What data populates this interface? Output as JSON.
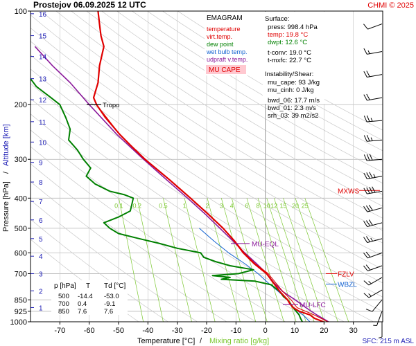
{
  "header": {
    "title": "Prostejov   06.09.2025 12 UTC",
    "credit": "CHMI © 2025"
  },
  "legend": {
    "heading": "EMAGRAM",
    "items": [
      {
        "label": "temperature",
        "color": "#e00000"
      },
      {
        "label": "virt.temp.",
        "color": "#e00000"
      },
      {
        "label": "dew point",
        "color": "#008000"
      },
      {
        "label": "wet bulb temp.",
        "color": "#1060d0"
      },
      {
        "label": "udpraft v.temp.",
        "color": "#8b1a9b"
      }
    ],
    "badge": "MU CAPE",
    "badge_color": "#ffc8d0"
  },
  "surface": {
    "heading": "Surface:",
    "lines": [
      {
        "text": "press: 998.4 hPa",
        "color": "#000000"
      },
      {
        "text": "temp: 19.8 °C",
        "color": "#e00000"
      },
      {
        "text": "dwpt: 12.6 °C",
        "color": "#008000"
      },
      {
        "text": "t-conv: 19.0 °C",
        "color": "#000000"
      },
      {
        "text": "t-mxfc: 22.7 °C",
        "color": "#000000"
      }
    ]
  },
  "instability": {
    "heading": "Instability/Shear:",
    "lines": [
      "mu_cape: 93 J/kg",
      "mu_cinh: 0 J/kg",
      "bwd_06: 17.7 m/s",
      "bwd_01: 2.3 m/s",
      "srh_03: 39 m2/s2"
    ]
  },
  "table": {
    "headers": [
      "p [hPa]",
      "T",
      "Td [°C]"
    ],
    "rows": [
      [
        "500",
        "-14.4",
        "-53.0"
      ],
      [
        "700",
        "0.4",
        "-9.1"
      ],
      [
        "850",
        "7.6",
        "7.6"
      ]
    ]
  },
  "annotations": {
    "tropo": "Tropo",
    "mu_eql": "MU-EQL",
    "mu_lfc": "MU-LFC",
    "mxws": "MXWS",
    "fzlv": "FZLV",
    "wbzl": "WBZL",
    "sfc": "SFC: 215 m ASL"
  },
  "colors": {
    "temperature": "#e00000",
    "dewpoint": "#008000",
    "wetbulb": "#1060d0",
    "parcel": "#8b1a9b",
    "altitude": "#1a1ab4",
    "mixing": "#7cc832"
  },
  "chart_data": {
    "type": "line",
    "x_axis": {
      "label": "Temperature [°C]",
      "range": [
        -80,
        40
      ],
      "ticks": [
        -70,
        -60,
        -50,
        -40,
        -30,
        -20,
        -10,
        0,
        10,
        20,
        30
      ]
    },
    "x_axis_secondary_label": "Mixing ratio [g/kg]",
    "y_axis": {
      "label": "Pressure [hPa]",
      "scale": "log",
      "range": [
        1000,
        100
      ],
      "ticks": [
        100,
        200,
        300,
        400,
        500,
        600,
        700,
        850,
        925,
        1000
      ]
    },
    "y_axis_secondary": {
      "label": "Altitude [km]",
      "ticks": [
        1,
        2,
        3,
        4,
        5,
        6,
        7,
        8,
        9,
        10,
        11,
        12,
        13,
        14,
        15,
        16
      ],
      "pressures": [
        900,
        795,
        700,
        615,
        540,
        470,
        410,
        355,
        307,
        264,
        227,
        193,
        165,
        140,
        120,
        102
      ]
    },
    "mixing_ratio_labels": [
      "0.1",
      "0.2",
      "0.5",
      "1",
      "2",
      "3",
      "4",
      "6",
      "8",
      "10",
      "12",
      "15",
      "20",
      "25"
    ],
    "mixing_ratio_label_pressure": 400,
    "series": [
      {
        "name": "temperature",
        "points": [
          [
            1000,
            19.8
          ],
          [
            975,
            16.8
          ],
          [
            950,
            15.2
          ],
          [
            925,
            11.5
          ],
          [
            900,
            9.5
          ],
          [
            875,
            8.4
          ],
          [
            850,
            7.6
          ],
          [
            800,
            5.0
          ],
          [
            750,
            2.8
          ],
          [
            700,
            0.4
          ],
          [
            650,
            -3.8
          ],
          [
            600,
            -7.5
          ],
          [
            550,
            -10.5
          ],
          [
            500,
            -14.4
          ],
          [
            450,
            -19.5
          ],
          [
            400,
            -25.5
          ],
          [
            350,
            -32.5
          ],
          [
            300,
            -41.0
          ],
          [
            270,
            -46.0
          ],
          [
            250,
            -49.5
          ],
          [
            220,
            -54.5
          ],
          [
            200,
            -57.5
          ],
          [
            190,
            -58.5
          ],
          [
            170,
            -57.0
          ],
          [
            150,
            -56.5
          ],
          [
            130,
            -55.0
          ],
          [
            120,
            -56.0
          ],
          [
            110,
            -56.5
          ],
          [
            100,
            -57.0
          ]
        ]
      },
      {
        "name": "virt.temp.",
        "points": [
          [
            1000,
            21.3
          ],
          [
            950,
            16.6
          ],
          [
            900,
            10.8
          ],
          [
            850,
            8.8
          ],
          [
            800,
            6.0
          ],
          [
            750,
            3.6
          ],
          [
            700,
            1.0
          ],
          [
            650,
            -3.5
          ],
          [
            600,
            -7.2
          ],
          [
            550,
            -10.3
          ],
          [
            500,
            -14.3
          ],
          [
            450,
            -19.4
          ],
          [
            400,
            -25.4
          ],
          [
            350,
            -32.5
          ],
          [
            300,
            -41.0
          ],
          [
            250,
            -49.5
          ],
          [
            200,
            -57.5
          ]
        ]
      },
      {
        "name": "dew point",
        "points": [
          [
            1000,
            12.6
          ],
          [
            975,
            12.0
          ],
          [
            950,
            11.5
          ],
          [
            925,
            10.5
          ],
          [
            900,
            9.5
          ],
          [
            875,
            8.6
          ],
          [
            850,
            7.6
          ],
          [
            830,
            6.2
          ],
          [
            800,
            5.0
          ],
          [
            760,
            2.0
          ],
          [
            740,
            -3.5
          ],
          [
            730,
            -15.0
          ],
          [
            720,
            -12.0
          ],
          [
            710,
            -18.0
          ],
          [
            700,
            -9.1
          ],
          [
            680,
            -4.0
          ],
          [
            660,
            -12.0
          ],
          [
            640,
            -17.0
          ],
          [
            620,
            -21.0
          ],
          [
            600,
            -22.0
          ],
          [
            580,
            -30.0
          ],
          [
            560,
            -36.0
          ],
          [
            540,
            -43.0
          ],
          [
            520,
            -50.0
          ],
          [
            500,
            -53.0
          ],
          [
            480,
            -55.0
          ],
          [
            460,
            -50.0
          ],
          [
            440,
            -46.0
          ],
          [
            420,
            -45.5
          ],
          [
            400,
            -45.0
          ],
          [
            390,
            -48.0
          ],
          [
            380,
            -53.0
          ],
          [
            360,
            -58.0
          ],
          [
            340,
            -61.0
          ],
          [
            320,
            -59.5
          ],
          [
            300,
            -62.0
          ],
          [
            280,
            -64.0
          ],
          [
            260,
            -67.0
          ],
          [
            240,
            -66.5
          ],
          [
            220,
            -68.0
          ],
          [
            200,
            -70.0
          ],
          [
            190,
            -73.0
          ],
          [
            175,
            -78.0
          ],
          [
            165,
            -80.0
          ]
        ]
      },
      {
        "name": "wet bulb temp.",
        "points": [
          [
            1000,
            15.2
          ],
          [
            950,
            12.8
          ],
          [
            900,
            9.5
          ],
          [
            850,
            7.6
          ],
          [
            800,
            4.5
          ],
          [
            750,
            1.0
          ],
          [
            700,
            -2.5
          ],
          [
            650,
            -7.0
          ],
          [
            600,
            -12.5
          ],
          [
            550,
            -17.5
          ],
          [
            500,
            -22.5
          ]
        ]
      },
      {
        "name": "udpraft v.temp.",
        "points": [
          [
            1000,
            21.5
          ],
          [
            950,
            17.5
          ],
          [
            900,
            13.8
          ],
          [
            850,
            10.2
          ],
          [
            800,
            6.0
          ],
          [
            750,
            3.0
          ],
          [
            700,
            0.5
          ],
          [
            650,
            -3.0
          ],
          [
            600,
            -7.0
          ],
          [
            550,
            -11.0
          ],
          [
            500,
            -15.5
          ],
          [
            450,
            -20.5
          ],
          [
            400,
            -26.5
          ],
          [
            350,
            -33.5
          ],
          [
            300,
            -41.5
          ],
          [
            250,
            -50.5
          ],
          [
            200,
            -60.0
          ],
          [
            170,
            -66.5
          ],
          [
            150,
            -72.5
          ],
          [
            130,
            -78.5
          ]
        ]
      }
    ],
    "levels": [
      {
        "name": "Tropo",
        "pressure": 200
      },
      {
        "name": "MU-EQL",
        "pressure": 560
      },
      {
        "name": "MU-LFC",
        "pressure": 880
      },
      {
        "name": "MXWS",
        "pressure": 378
      },
      {
        "name": "FZLV",
        "pressure": 700
      },
      {
        "name": "WBZL",
        "pressure": 715
      }
    ],
    "wind_barbs": [
      {
        "pressure": 110,
        "dir": 250,
        "speed": 10
      },
      {
        "pressure": 135,
        "dir": 260,
        "speed": 15
      },
      {
        "pressure": 160,
        "dir": 260,
        "speed": 20
      },
      {
        "pressure": 190,
        "dir": 260,
        "speed": 20
      },
      {
        "pressure": 225,
        "dir": 265,
        "speed": 25
      },
      {
        "pressure": 260,
        "dir": 265,
        "speed": 25
      },
      {
        "pressure": 300,
        "dir": 265,
        "speed": 30
      },
      {
        "pressure": 340,
        "dir": 260,
        "speed": 35
      },
      {
        "pressure": 380,
        "dir": 260,
        "speed": 40
      },
      {
        "pressure": 430,
        "dir": 255,
        "speed": 30
      },
      {
        "pressure": 480,
        "dir": 255,
        "speed": 30
      },
      {
        "pressure": 540,
        "dir": 255,
        "speed": 25
      },
      {
        "pressure": 600,
        "dir": 250,
        "speed": 20
      },
      {
        "pressure": 660,
        "dir": 250,
        "speed": 20
      },
      {
        "pressure": 720,
        "dir": 240,
        "speed": 15
      },
      {
        "pressure": 790,
        "dir": 240,
        "speed": 15
      },
      {
        "pressure": 850,
        "dir": 220,
        "speed": 10
      },
      {
        "pressure": 925,
        "dir": 200,
        "speed": 5
      },
      {
        "pressure": 1000,
        "dir": 180,
        "speed": 5
      }
    ]
  }
}
